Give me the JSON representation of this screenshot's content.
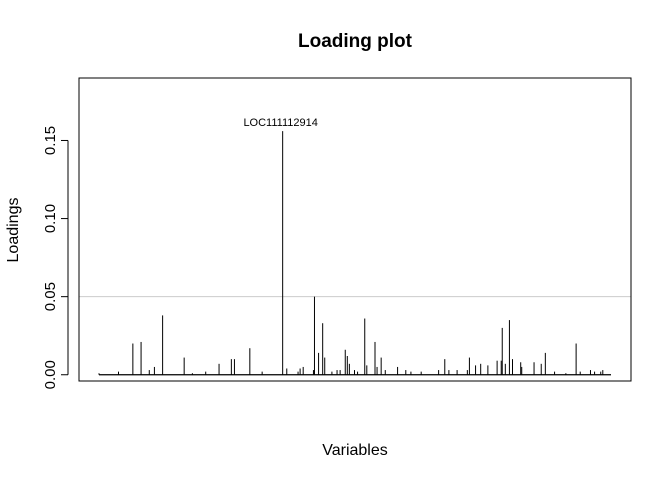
{
  "chart_data": {
    "type": "bar",
    "title": "Loading plot",
    "xlabel": "Variables",
    "ylabel": "Loadings",
    "ylim": [
      -0.004,
      0.19
    ],
    "yticks": [
      0.0,
      0.05,
      0.1,
      0.15
    ],
    "ytick_labels": [
      "0.00",
      "0.05",
      "0.10",
      "0.15"
    ],
    "threshold": 0.05,
    "threshold_color": "#cccccc",
    "bar_color": "#000000",
    "grid": false,
    "legend": "none",
    "annotation": {
      "text": "LOC111112914",
      "variable": 180,
      "value": 0.156
    },
    "n_variables": 500,
    "nonzero_loadings": [
      [
        1,
        0.001
      ],
      [
        20,
        0.002
      ],
      [
        34,
        0.02
      ],
      [
        42,
        0.021
      ],
      [
        50,
        0.003
      ],
      [
        55,
        0.005
      ],
      [
        63,
        0.038
      ],
      [
        84,
        0.011
      ],
      [
        92,
        0.001
      ],
      [
        105,
        0.002
      ],
      [
        118,
        0.007
      ],
      [
        130,
        0.01
      ],
      [
        133,
        0.01
      ],
      [
        148,
        0.017
      ],
      [
        160,
        0.002
      ],
      [
        180,
        0.156
      ],
      [
        184,
        0.004
      ],
      [
        195,
        0.002
      ],
      [
        197,
        0.004
      ],
      [
        200,
        0.005
      ],
      [
        210,
        0.003
      ],
      [
        211,
        0.05
      ],
      [
        215,
        0.014
      ],
      [
        219,
        0.033
      ],
      [
        221,
        0.011
      ],
      [
        228,
        0.002
      ],
      [
        233,
        0.003
      ],
      [
        236,
        0.003
      ],
      [
        241,
        0.016
      ],
      [
        243,
        0.012
      ],
      [
        245,
        0.007
      ],
      [
        250,
        0.003
      ],
      [
        253,
        0.002
      ],
      [
        260,
        0.036
      ],
      [
        262,
        0.006
      ],
      [
        270,
        0.021
      ],
      [
        272,
        0.005
      ],
      [
        276,
        0.011
      ],
      [
        280,
        0.003
      ],
      [
        292,
        0.005
      ],
      [
        300,
        0.003
      ],
      [
        305,
        0.002
      ],
      [
        315,
        0.002
      ],
      [
        332,
        0.003
      ],
      [
        338,
        0.01
      ],
      [
        342,
        0.003
      ],
      [
        350,
        0.003
      ],
      [
        360,
        0.003
      ],
      [
        362,
        0.011
      ],
      [
        368,
        0.006
      ],
      [
        373,
        0.007
      ],
      [
        380,
        0.006
      ],
      [
        389,
        0.009
      ],
      [
        393,
        0.009
      ],
      [
        394,
        0.03
      ],
      [
        397,
        0.007
      ],
      [
        401,
        0.035
      ],
      [
        404,
        0.01
      ],
      [
        412,
        0.008
      ],
      [
        413,
        0.005
      ],
      [
        425,
        0.008
      ],
      [
        432,
        0.007
      ],
      [
        436,
        0.014
      ],
      [
        445,
        0.002
      ],
      [
        456,
        0.001
      ],
      [
        466,
        0.02
      ],
      [
        470,
        0.002
      ],
      [
        480,
        0.003
      ],
      [
        484,
        0.002
      ],
      [
        490,
        0.002
      ],
      [
        492,
        0.003
      ]
    ]
  }
}
